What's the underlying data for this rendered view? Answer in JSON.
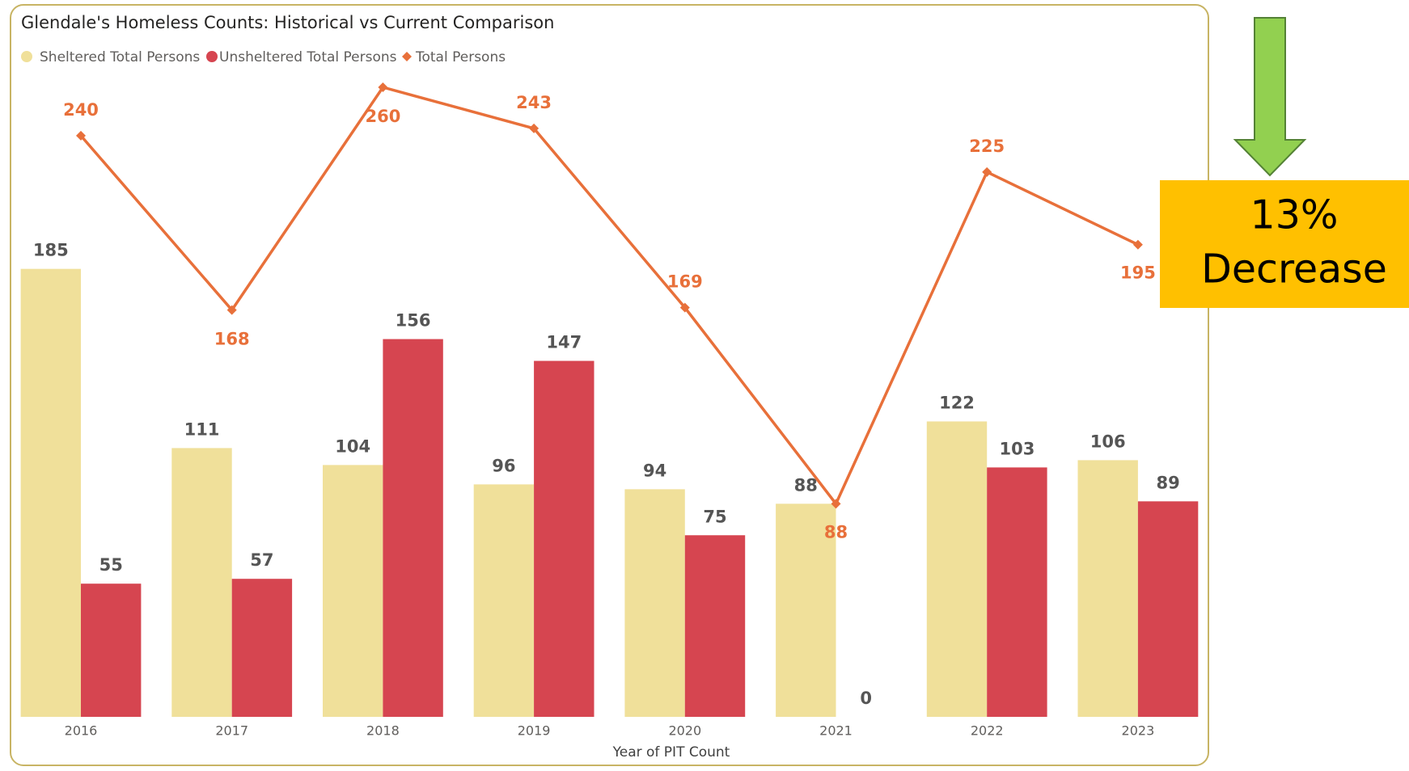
{
  "chart_data": {
    "type": "bar-line",
    "title": "Glendale's Homeless Counts: Historical vs Current Comparison",
    "x_label": "Year of PIT Count",
    "categories": [
      "2016",
      "2017",
      "2018",
      "2019",
      "2020",
      "2021",
      "2022",
      "2023"
    ],
    "series": [
      {
        "name": "Sheltered Total Persons",
        "type": "bar",
        "color": "#f0e09a",
        "values": [
          185,
          111,
          104,
          96,
          94,
          88,
          122,
          106
        ]
      },
      {
        "name": "Unsheltered Total Persons",
        "type": "bar",
        "color": "#d64550",
        "values": [
          55,
          57,
          156,
          147,
          75,
          0,
          103,
          89
        ]
      },
      {
        "name": "Total Persons",
        "type": "line",
        "color": "#e8703a",
        "values": [
          240,
          168,
          260,
          243,
          169,
          88,
          225,
          195
        ]
      }
    ],
    "ylim": [
      0,
      270
    ],
    "annotation": [
      "13%",
      "Decrease"
    ]
  }
}
